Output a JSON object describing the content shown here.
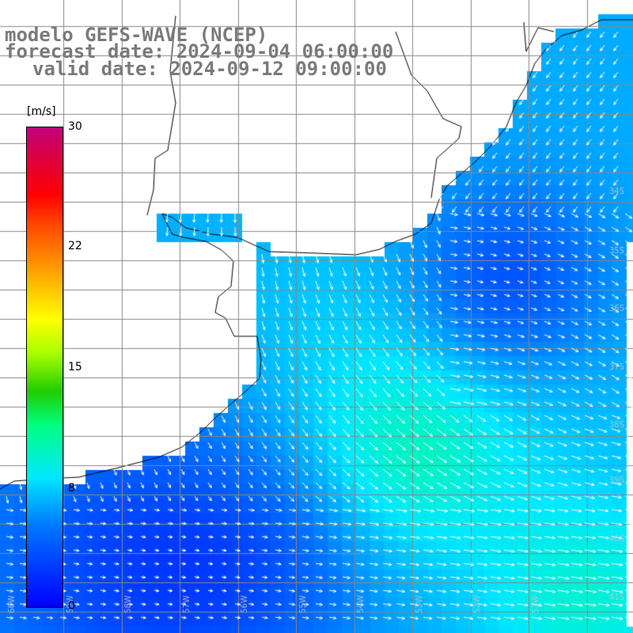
{
  "title": {
    "model": "modelo GEFS-WAVE (NCEP)",
    "forecast": "forecast date: 2024-09-04 06:00:00",
    "valid": "valid date: 2024-09-12 09:00:00"
  },
  "colorbar": {
    "unit": "[m/s]",
    "min": 0,
    "max": 30,
    "ticks": [
      "30",
      "22",
      "15",
      "8",
      "0"
    ],
    "colors": [
      "#0000ff",
      "#0078ff",
      "#00e8ff",
      "#00ff7f",
      "#22cc00",
      "#aaff00",
      "#ffff00",
      "#ffaa00",
      "#ff4400",
      "#ff0000",
      "#c0007a"
    ]
  },
  "map": {
    "lat_labels": [
      "34S",
      "35S",
      "36S",
      "37S",
      "38S",
      "39S",
      "40S",
      "41S"
    ],
    "lon_labels": [
      "60W",
      "59W",
      "58W",
      "57W",
      "56W",
      "55W",
      "54W",
      "53W",
      "52W",
      "51W"
    ],
    "land_color": "#ffffff",
    "grid_color": "#888888",
    "coast_color": "#000000",
    "vector_color": "#ffffff"
  }
}
